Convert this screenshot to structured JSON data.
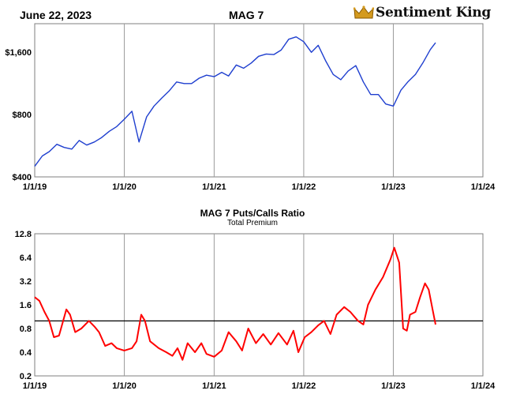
{
  "header": {
    "date": "June 22, 2023",
    "title": "MAG 7",
    "brand": "Sentiment King"
  },
  "colors": {
    "price_line": "#1f3fcf",
    "ratio_line": "#ff0000",
    "gridline": "#9a9a9a",
    "reference_line": "#000000",
    "logo_crown": "#d49a1e"
  },
  "chart_data": [
    {
      "type": "line",
      "title": "MAG 7",
      "y_scale": "log",
      "ylim": [
        400,
        2200
      ],
      "yticks": [
        {
          "value": 400,
          "label": "$400"
        },
        {
          "value": 800,
          "label": "$800"
        },
        {
          "value": 1600,
          "label": "$1,600"
        }
      ],
      "xlim": [
        "2019-01-01",
        "2024-01-01"
      ],
      "xticks": [
        "1/1/19",
        "1/1/20",
        "1/1/21",
        "1/1/22",
        "1/1/23",
        "1/1/24"
      ],
      "grid": "vertical",
      "series": [
        {
          "values": [
            [
              "2019-01-01",
              450
            ],
            [
              "2019-02-01",
              505
            ],
            [
              "2019-03-01",
              530
            ],
            [
              "2019-04-01",
              575
            ],
            [
              "2019-05-01",
              555
            ],
            [
              "2019-06-01",
              545
            ],
            [
              "2019-07-01",
              600
            ],
            [
              "2019-08-01",
              570
            ],
            [
              "2019-09-01",
              590
            ],
            [
              "2019-10-01",
              620
            ],
            [
              "2019-11-01",
              665
            ],
            [
              "2019-12-01",
              700
            ],
            [
              "2020-01-01",
              760
            ],
            [
              "2020-02-01",
              830
            ],
            [
              "2020-03-01",
              590
            ],
            [
              "2020-04-01",
              780
            ],
            [
              "2020-05-01",
              880
            ],
            [
              "2020-06-01",
              960
            ],
            [
              "2020-07-01",
              1040
            ],
            [
              "2020-08-01",
              1150
            ],
            [
              "2020-09-01",
              1130
            ],
            [
              "2020-10-01",
              1130
            ],
            [
              "2020-11-01",
              1200
            ],
            [
              "2020-12-01",
              1240
            ],
            [
              "2021-01-01",
              1220
            ],
            [
              "2021-02-01",
              1280
            ],
            [
              "2021-03-01",
              1230
            ],
            [
              "2021-04-01",
              1390
            ],
            [
              "2021-05-01",
              1340
            ],
            [
              "2021-06-01",
              1420
            ],
            [
              "2021-07-01",
              1530
            ],
            [
              "2021-08-01",
              1570
            ],
            [
              "2021-09-01",
              1560
            ],
            [
              "2021-10-01",
              1640
            ],
            [
              "2021-11-01",
              1850
            ],
            [
              "2021-12-01",
              1900
            ],
            [
              "2022-01-01",
              1800
            ],
            [
              "2022-02-01",
              1600
            ],
            [
              "2022-03-01",
              1730
            ],
            [
              "2022-04-01",
              1450
            ],
            [
              "2022-05-01",
              1250
            ],
            [
              "2022-06-01",
              1180
            ],
            [
              "2022-07-01",
              1300
            ],
            [
              "2022-08-01",
              1380
            ],
            [
              "2022-09-01",
              1150
            ],
            [
              "2022-10-01",
              1000
            ],
            [
              "2022-11-01",
              1000
            ],
            [
              "2022-12-01",
              900
            ],
            [
              "2023-01-01",
              880
            ],
            [
              "2023-02-01",
              1050
            ],
            [
              "2023-03-01",
              1150
            ],
            [
              "2023-04-01",
              1250
            ],
            [
              "2023-05-01",
              1420
            ],
            [
              "2023-06-01",
              1650
            ],
            [
              "2023-06-22",
              1780
            ]
          ]
        }
      ]
    },
    {
      "type": "line",
      "title": "MAG 7 Puts/Calls Ratio",
      "subtitle": "Total Premium",
      "y_scale": "log",
      "ylim": [
        0.2,
        12.8
      ],
      "yticks": [
        {
          "value": 0.2,
          "label": "0.2"
        },
        {
          "value": 0.4,
          "label": "0.4"
        },
        {
          "value": 0.8,
          "label": "0.8"
        },
        {
          "value": 1.6,
          "label": "1.6"
        },
        {
          "value": 3.2,
          "label": "3.2"
        },
        {
          "value": 6.4,
          "label": "6.4"
        },
        {
          "value": 12.8,
          "label": "12.8"
        }
      ],
      "reference_line": 1.0,
      "xlim": [
        "2019-01-01",
        "2024-01-01"
      ],
      "xticks": [
        "1/1/19",
        "1/1/20",
        "1/1/21",
        "1/1/22",
        "1/1/23",
        "1/1/24"
      ],
      "grid": "vertical",
      "series": [
        {
          "values": [
            [
              "2019-01-01",
              2.0
            ],
            [
              "2019-01-20",
              1.8
            ],
            [
              "2019-02-10",
              1.3
            ],
            [
              "2019-03-01",
              1.0
            ],
            [
              "2019-03-20",
              0.62
            ],
            [
              "2019-04-10",
              0.65
            ],
            [
              "2019-05-10",
              1.4
            ],
            [
              "2019-05-25",
              1.2
            ],
            [
              "2019-06-15",
              0.72
            ],
            [
              "2019-07-10",
              0.8
            ],
            [
              "2019-08-10",
              1.0
            ],
            [
              "2019-09-01",
              0.85
            ],
            [
              "2019-09-20",
              0.72
            ],
            [
              "2019-10-15",
              0.48
            ],
            [
              "2019-11-10",
              0.52
            ],
            [
              "2019-12-01",
              0.45
            ],
            [
              "2020-01-01",
              0.42
            ],
            [
              "2020-02-01",
              0.45
            ],
            [
              "2020-02-20",
              0.55
            ],
            [
              "2020-03-10",
              1.2
            ],
            [
              "2020-03-25",
              1.0
            ],
            [
              "2020-04-15",
              0.55
            ],
            [
              "2020-05-20",
              0.45
            ],
            [
              "2020-06-20",
              0.4
            ],
            [
              "2020-07-15",
              0.36
            ],
            [
              "2020-08-05",
              0.45
            ],
            [
              "2020-08-25",
              0.32
            ],
            [
              "2020-09-15",
              0.52
            ],
            [
              "2020-10-15",
              0.4
            ],
            [
              "2020-11-10",
              0.52
            ],
            [
              "2020-12-01",
              0.38
            ],
            [
              "2021-01-01",
              0.35
            ],
            [
              "2021-02-01",
              0.42
            ],
            [
              "2021-03-01",
              0.72
            ],
            [
              "2021-04-01",
              0.55
            ],
            [
              "2021-04-25",
              0.42
            ],
            [
              "2021-05-20",
              0.8
            ],
            [
              "2021-06-20",
              0.52
            ],
            [
              "2021-07-20",
              0.68
            ],
            [
              "2021-08-20",
              0.5
            ],
            [
              "2021-09-20",
              0.7
            ],
            [
              "2021-10-25",
              0.5
            ],
            [
              "2021-11-20",
              0.75
            ],
            [
              "2021-12-10",
              0.4
            ],
            [
              "2022-01-05",
              0.62
            ],
            [
              "2022-02-01",
              0.72
            ],
            [
              "2022-03-01",
              0.88
            ],
            [
              "2022-03-25",
              1.0
            ],
            [
              "2022-04-20",
              0.68
            ],
            [
              "2022-05-15",
              1.2
            ],
            [
              "2022-06-15",
              1.5
            ],
            [
              "2022-07-10",
              1.3
            ],
            [
              "2022-08-10",
              1.0
            ],
            [
              "2022-09-01",
              0.9
            ],
            [
              "2022-09-20",
              1.6
            ],
            [
              "2022-10-20",
              2.5
            ],
            [
              "2022-11-20",
              3.6
            ],
            [
              "2022-12-20",
              6.0
            ],
            [
              "2023-01-05",
              8.5
            ],
            [
              "2023-01-25",
              5.5
            ],
            [
              "2023-02-10",
              0.8
            ],
            [
              "2023-02-25",
              0.75
            ],
            [
              "2023-03-10",
              1.2
            ],
            [
              "2023-04-01",
              1.3
            ],
            [
              "2023-04-20",
              2.0
            ],
            [
              "2023-05-10",
              3.0
            ],
            [
              "2023-05-25",
              2.5
            ],
            [
              "2023-06-10",
              1.4
            ],
            [
              "2023-06-22",
              0.9
            ]
          ]
        }
      ]
    }
  ]
}
